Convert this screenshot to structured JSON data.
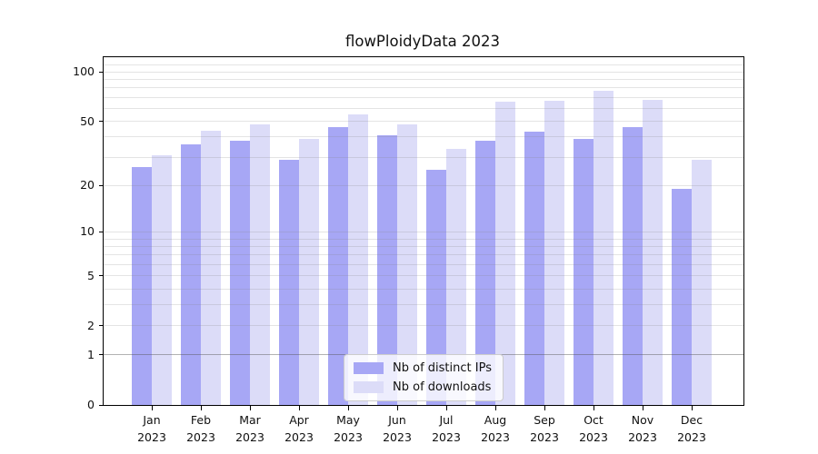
{
  "title": "flowPloidyData 2023",
  "chart_data": {
    "type": "bar",
    "title": "flowPloidyData 2023",
    "categories": [
      "Jan 2023",
      "Feb 2023",
      "Mar 2023",
      "Apr 2023",
      "May 2023",
      "Jun 2023",
      "Jul 2023",
      "Aug 2023",
      "Sep 2023",
      "Oct 2023",
      "Nov 2023",
      "Dec 2023"
    ],
    "x_tick_months": [
      "Jan",
      "Feb",
      "Mar",
      "Apr",
      "May",
      "Jun",
      "Jul",
      "Aug",
      "Sep",
      "Oct",
      "Nov",
      "Dec"
    ],
    "x_tick_year": "2023",
    "series": [
      {
        "name": "Nb of distinct IPs",
        "color": "#a7a7f5",
        "values": [
          26,
          36,
          38,
          29,
          46,
          41,
          25,
          38,
          43,
          39,
          46,
          19
        ]
      },
      {
        "name": "Nb of downloads",
        "color": "#dcdcf8",
        "values": [
          31,
          44,
          48,
          39,
          55,
          48,
          34,
          66,
          67,
          77,
          68,
          29
        ]
      }
    ],
    "yscale": "log1p",
    "ylim": [
      0,
      123
    ],
    "y_tick_values": [
      100,
      50,
      20,
      10,
      5,
      2,
      1,
      0
    ],
    "y_tick_labels": [
      "100",
      "50",
      "20",
      "10",
      "5",
      "2",
      "1",
      "0"
    ],
    "grid": "horizontal",
    "grid_minor_values": [
      2,
      3,
      4,
      5,
      6,
      7,
      8,
      9,
      10,
      20,
      30,
      40,
      50,
      60,
      70,
      80,
      90,
      100,
      110
    ],
    "grid_dark_values": [
      1
    ],
    "legend_position": "lower center",
    "colors": {
      "distinct_ips_bar": "#a7a7f5",
      "downloads_bar": "#dcdcf8",
      "gridline": "#e3e3e3",
      "gridline_dark": "#b7b7b7",
      "spine": "#000000"
    }
  },
  "legend": {
    "items": [
      {
        "label": "Nb of distinct IPs"
      },
      {
        "label": "Nb of downloads"
      }
    ]
  }
}
